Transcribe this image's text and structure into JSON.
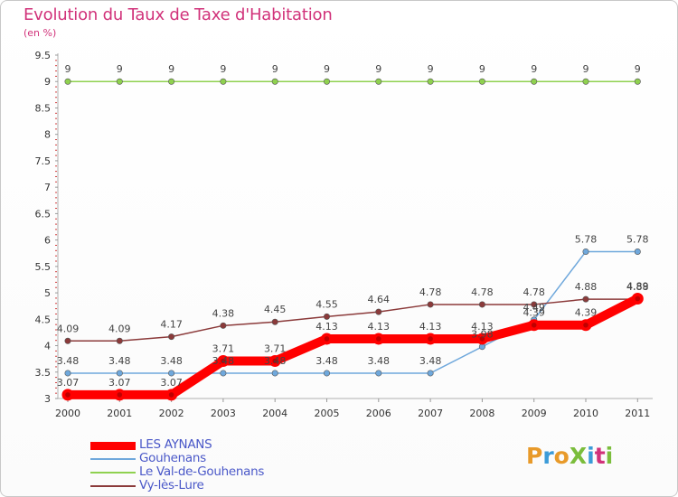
{
  "title": "Evolution du Taux de Taxe d'Habitation",
  "subtitle": "(en %)",
  "logo": {
    "text": "ProXiti",
    "colors": [
      "#e89a2a",
      "#3b9bd8",
      "#e89a2a",
      "#7bbd3c",
      "#3b9bd8",
      "#d1327a",
      "#7bbd3c"
    ]
  },
  "chart_data": {
    "type": "line",
    "x": [
      "2000",
      "2001",
      "2002",
      "2003",
      "2004",
      "2005",
      "2006",
      "2007",
      "2008",
      "2009",
      "2010",
      "2011"
    ],
    "ylim": [
      3,
      9.5
    ],
    "yticks": [
      "3",
      "3.5",
      "4",
      "4.5",
      "5",
      "5.5",
      "6",
      "6.5",
      "7",
      "7.5",
      "8",
      "8.5",
      "9",
      "9.5"
    ],
    "grid": false,
    "legend_position": "bottom-left",
    "series": [
      {
        "name": "Le Val-de-Gouhenans",
        "color": "#8fd14f",
        "values": [
          9,
          9,
          9,
          9,
          9,
          9,
          9,
          9,
          9,
          9,
          9,
          9
        ],
        "labels": [
          "9",
          "9",
          "9",
          "9",
          "9",
          "9",
          "9",
          "9",
          "9",
          "9",
          "9",
          "9"
        ]
      },
      {
        "name": "Gouhenans",
        "color": "#6fa8dc",
        "values": [
          3.48,
          3.48,
          3.48,
          3.48,
          3.48,
          3.48,
          3.48,
          3.48,
          3.98,
          4.49,
          5.78,
          5.78
        ],
        "labels": [
          "3.48",
          "3.48",
          "3.48",
          "3.48",
          "3.48",
          "3.48",
          "3.48",
          "3.48",
          "3.98",
          "4.49",
          "5.78",
          "5.78"
        ]
      },
      {
        "name": "Vy-lès-Lure",
        "color": "#8b3a3a",
        "values": [
          4.09,
          4.09,
          4.17,
          4.38,
          4.45,
          4.55,
          4.64,
          4.78,
          4.78,
          4.78,
          4.88,
          4.88
        ],
        "labels": [
          "4.09",
          "4.09",
          "4.17",
          "4.38",
          "4.45",
          "4.55",
          "4.64",
          "4.78",
          "4.78",
          "4.78",
          "4.88",
          "4.88"
        ]
      },
      {
        "name": "LES AYNANS",
        "color": "#ff0000",
        "values": [
          3.07,
          3.07,
          3.07,
          3.71,
          3.71,
          4.13,
          4.13,
          4.13,
          4.13,
          4.39,
          4.39,
          4.89
        ],
        "labels": [
          "3.07",
          "3.07",
          "3.07",
          "3.71",
          "3.71",
          "4.13",
          "4.13",
          "4.13",
          "4.13",
          "4.39",
          "4.39",
          "4.89"
        ]
      }
    ]
  },
  "legend": [
    {
      "label": "LES AYNANS",
      "color": "#ff0000",
      "thickness": "thick"
    },
    {
      "label": "Gouhenans",
      "color": "#6fa8dc",
      "thickness": "thin"
    },
    {
      "label": "Le Val-de-Gouhenans",
      "color": "#8fd14f",
      "thickness": "thin"
    },
    {
      "label": "Vy-lès-Lure",
      "color": "#8b3a3a",
      "thickness": "thin"
    }
  ]
}
